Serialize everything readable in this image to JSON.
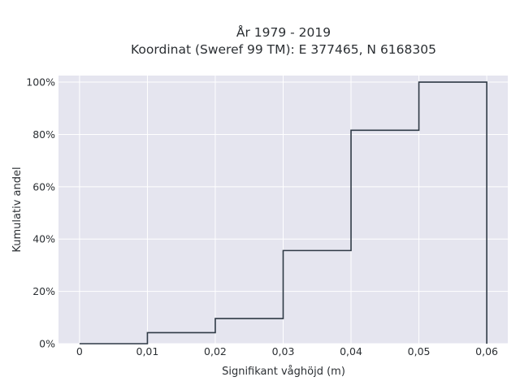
{
  "chart_data": {
    "type": "line",
    "title_lines": [
      "År 1979 - 2019",
      "Koordinat (Sweref 99 TM): E 377465, N 6168305"
    ],
    "xlabel": "Signifikant våghöjd (m)",
    "ylabel": "Kumulativ andel",
    "x_ticks": [
      {
        "value": 0,
        "label": "0"
      },
      {
        "value": 0.01,
        "label": "0,01"
      },
      {
        "value": 0.02,
        "label": "0,02"
      },
      {
        "value": 0.03,
        "label": "0,03"
      },
      {
        "value": 0.04,
        "label": "0,04"
      },
      {
        "value": 0.05,
        "label": "0,05"
      },
      {
        "value": 0.06,
        "label": "0,06"
      }
    ],
    "y_ticks": [
      {
        "value": 0,
        "label": "0%"
      },
      {
        "value": 20,
        "label": "20%"
      },
      {
        "value": 40,
        "label": "40%"
      },
      {
        "value": 60,
        "label": "60%"
      },
      {
        "value": 80,
        "label": "80%"
      },
      {
        "value": 100,
        "label": "100%"
      }
    ],
    "xlim": [
      -0.0031,
      0.0631
    ],
    "ylim": [
      0,
      102.5
    ],
    "step": {
      "x": [
        0,
        0.01,
        0.02,
        0.03,
        0.04,
        0.05,
        0.06
      ],
      "y": [
        0,
        4.2,
        9.6,
        35.6,
        81.6,
        100,
        100
      ],
      "end_drop_to": 0
    },
    "grid": true,
    "colors": {
      "plot_background": "#e5e5ef",
      "grid": "#ffffff",
      "line": "#2f3a46"
    }
  }
}
